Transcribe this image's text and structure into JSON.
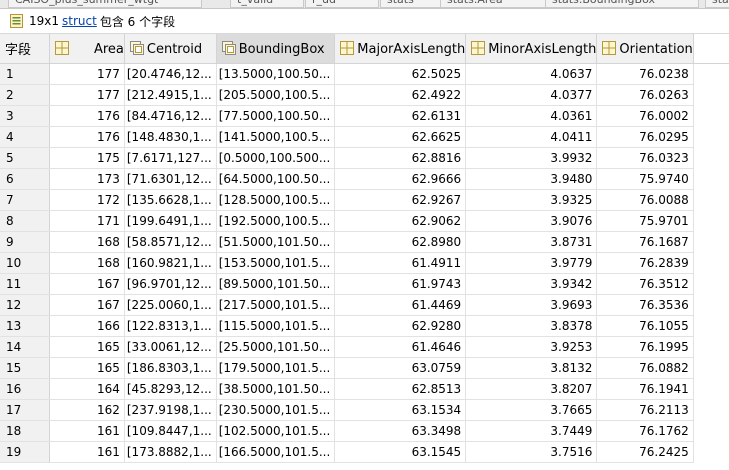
{
  "tabs": [
    "CAISO_plus_summer_wtgt",
    "t_valid",
    "r_ud",
    "stats",
    "stats.Area",
    "stats.BoundingBox",
    "stats"
  ],
  "info": {
    "size": "19x1",
    "link": "struct",
    "rest": "包含 6 个字段"
  },
  "columns": {
    "rowheader": "字段",
    "area": "Area",
    "centroid": "Centroid",
    "boundingbox": "BoundingBox",
    "major": "MajorAxisLength",
    "minor": "MinorAxisLength",
    "orientation": "Orientation"
  },
  "rows": [
    {
      "id": "1",
      "area": "177",
      "centroid": "[20.4746,12...",
      "bbox": "[13.5000,100.50...",
      "major": "62.5025",
      "minor": "4.0637",
      "orient": "76.0238"
    },
    {
      "id": "2",
      "area": "177",
      "centroid": "[212.4915,1...",
      "bbox": "[205.5000,100.5...",
      "major": "62.4922",
      "minor": "4.0377",
      "orient": "76.0263"
    },
    {
      "id": "3",
      "area": "176",
      "centroid": "[84.4716,12...",
      "bbox": "[77.5000,100.50...",
      "major": "62.6131",
      "minor": "4.0361",
      "orient": "76.0002"
    },
    {
      "id": "4",
      "area": "176",
      "centroid": "[148.4830,1...",
      "bbox": "[141.5000,100.5...",
      "major": "62.6625",
      "minor": "4.0411",
      "orient": "76.0295"
    },
    {
      "id": "5",
      "area": "175",
      "centroid": "[7.6171,127...",
      "bbox": "[0.5000,100.500...",
      "major": "62.8816",
      "minor": "3.9932",
      "orient": "76.0323"
    },
    {
      "id": "6",
      "area": "173",
      "centroid": "[71.6301,12...",
      "bbox": "[64.5000,100.50...",
      "major": "62.9666",
      "minor": "3.9480",
      "orient": "75.9740"
    },
    {
      "id": "7",
      "area": "172",
      "centroid": "[135.6628,1...",
      "bbox": "[128.5000,100.5...",
      "major": "62.9267",
      "minor": "3.9325",
      "orient": "76.0088"
    },
    {
      "id": "8",
      "area": "171",
      "centroid": "[199.6491,1...",
      "bbox": "[192.5000,100.5...",
      "major": "62.9062",
      "minor": "3.9076",
      "orient": "75.9701"
    },
    {
      "id": "9",
      "area": "168",
      "centroid": "[58.8571,12...",
      "bbox": "[51.5000,101.50...",
      "major": "62.8980",
      "minor": "3.8731",
      "orient": "76.1687"
    },
    {
      "id": "10",
      "area": "168",
      "centroid": "[160.9821,1...",
      "bbox": "[153.5000,101.5...",
      "major": "61.4911",
      "minor": "3.9779",
      "orient": "76.2839"
    },
    {
      "id": "11",
      "area": "167",
      "centroid": "[96.9701,12...",
      "bbox": "[89.5000,101.50...",
      "major": "61.9743",
      "minor": "3.9342",
      "orient": "76.3512"
    },
    {
      "id": "12",
      "area": "167",
      "centroid": "[225.0060,1...",
      "bbox": "[217.5000,101.5...",
      "major": "61.4469",
      "minor": "3.9693",
      "orient": "76.3536"
    },
    {
      "id": "13",
      "area": "166",
      "centroid": "[122.8313,1...",
      "bbox": "[115.5000,101.5...",
      "major": "62.9280",
      "minor": "3.8378",
      "orient": "76.1055"
    },
    {
      "id": "14",
      "area": "165",
      "centroid": "[33.0061,12...",
      "bbox": "[25.5000,101.50...",
      "major": "61.4646",
      "minor": "3.9253",
      "orient": "76.1995"
    },
    {
      "id": "15",
      "area": "165",
      "centroid": "[186.8303,1...",
      "bbox": "[179.5000,101.5...",
      "major": "63.0759",
      "minor": "3.8132",
      "orient": "76.0882"
    },
    {
      "id": "16",
      "area": "164",
      "centroid": "[45.8293,12...",
      "bbox": "[38.5000,101.50...",
      "major": "62.8513",
      "minor": "3.8207",
      "orient": "76.1941"
    },
    {
      "id": "17",
      "area": "162",
      "centroid": "[237.9198,1...",
      "bbox": "[230.5000,101.5...",
      "major": "63.1534",
      "minor": "3.7665",
      "orient": "76.2113"
    },
    {
      "id": "18",
      "area": "161",
      "centroid": "[109.8447,1...",
      "bbox": "[102.5000,101.5...",
      "major": "63.3498",
      "minor": "3.7449",
      "orient": "76.1762"
    },
    {
      "id": "19",
      "area": "161",
      "centroid": "[173.8882,1...",
      "bbox": "[166.5000,101.5...",
      "major": "63.1545",
      "minor": "3.7516",
      "orient": "76.2425"
    }
  ],
  "colors": {
    "header_bg": "#f1f1f1",
    "selected_header": "#dcdcdc",
    "link": "#0645ad",
    "grid_line": "#e2e2e2"
  }
}
